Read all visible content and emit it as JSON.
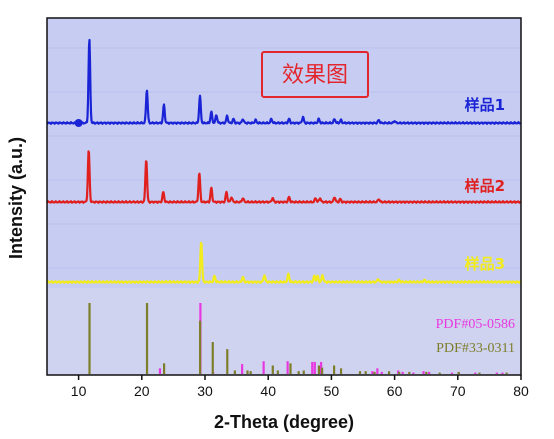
{
  "chart_data": {
    "type": "line",
    "xlabel": "2-Theta (degree)",
    "ylabel": "Intensity (a.u.)",
    "xlim": [
      5,
      80
    ],
    "x_ticks": [
      10,
      20,
      30,
      40,
      50,
      60,
      70,
      80
    ],
    "badge": "效果图",
    "colors": {
      "plot_background": "#c7cdf2",
      "sample1": "#1a24d6",
      "sample2": "#e01f1f",
      "sample3": "#f2ec1c",
      "pdf1": "#e838e0",
      "pdf2": "#7d7d2a",
      "badge_border": "#e3262d"
    },
    "series": [
      {
        "name": "样品1",
        "peaks": [
          [
            11.7,
            84
          ],
          [
            20.8,
            33
          ],
          [
            23.5,
            18
          ],
          [
            29.2,
            27
          ],
          [
            31.0,
            11
          ],
          [
            31.8,
            8
          ],
          [
            33.5,
            7
          ],
          [
            34.5,
            4
          ],
          [
            36.0,
            4
          ],
          [
            38.0,
            3
          ],
          [
            40.5,
            4
          ],
          [
            43.3,
            4
          ],
          [
            45.5,
            6
          ],
          [
            48.0,
            4
          ],
          [
            50.5,
            4
          ],
          [
            51.5,
            3
          ],
          [
            57.5,
            3
          ],
          [
            60.0,
            2
          ]
        ]
      },
      {
        "name": "样品2",
        "peaks": [
          [
            11.6,
            52
          ],
          [
            20.7,
            43
          ],
          [
            23.4,
            10
          ],
          [
            29.1,
            29
          ],
          [
            31.0,
            14
          ],
          [
            33.4,
            10
          ],
          [
            34.2,
            5
          ],
          [
            36.0,
            4
          ],
          [
            40.7,
            4
          ],
          [
            43.3,
            5
          ],
          [
            47.5,
            4
          ],
          [
            48.2,
            4
          ],
          [
            50.5,
            5
          ],
          [
            51.4,
            3
          ],
          [
            57.5,
            3
          ]
        ]
      },
      {
        "name": "样品3",
        "peaks": [
          [
            29.4,
            41
          ],
          [
            31.5,
            6
          ],
          [
            36.0,
            5
          ],
          [
            39.4,
            7
          ],
          [
            43.2,
            8
          ],
          [
            47.3,
            6
          ],
          [
            47.8,
            6
          ],
          [
            48.6,
            7
          ],
          [
            57.4,
            3
          ],
          [
            60.7,
            2
          ],
          [
            64.7,
            2
          ]
        ]
      }
    ],
    "reference_patterns": [
      {
        "name": "PDF#05-0586",
        "sticks": [
          [
            23.0,
            8
          ],
          [
            29.4,
            100
          ],
          [
            31.4,
            3
          ],
          [
            36.0,
            14
          ],
          [
            39.4,
            18
          ],
          [
            43.2,
            18
          ],
          [
            47.1,
            17
          ],
          [
            47.5,
            17
          ],
          [
            48.5,
            17
          ],
          [
            56.6,
            4
          ],
          [
            57.4,
            8
          ],
          [
            58.1,
            3
          ],
          [
            60.7,
            5
          ],
          [
            61.4,
            3
          ],
          [
            63.1,
            2
          ],
          [
            64.7,
            4
          ],
          [
            65.6,
            3
          ],
          [
            69.2,
            2
          ],
          [
            70.3,
            2
          ],
          [
            72.9,
            2
          ],
          [
            76.3,
            2
          ],
          [
            77.2,
            2
          ]
        ]
      },
      {
        "name": "PDF#33-0311",
        "sticks": [
          [
            11.6,
            100
          ],
          [
            20.7,
            100
          ],
          [
            23.4,
            15
          ],
          [
            29.1,
            75
          ],
          [
            31.1,
            45
          ],
          [
            33.4,
            35
          ],
          [
            34.6,
            5
          ],
          [
            36.6,
            5
          ],
          [
            37.1,
            4
          ],
          [
            40.6,
            12
          ],
          [
            41.4,
            5
          ],
          [
            43.4,
            15
          ],
          [
            44.7,
            4
          ],
          [
            45.5,
            5
          ],
          [
            47.9,
            12
          ],
          [
            48.4,
            9
          ],
          [
            50.3,
            12
          ],
          [
            51.4,
            8
          ],
          [
            54.4,
            4
          ],
          [
            55.3,
            4
          ],
          [
            56.7,
            3
          ],
          [
            59.0,
            4
          ],
          [
            60.6,
            3
          ],
          [
            62.2,
            3
          ],
          [
            64.9,
            3
          ],
          [
            67.0,
            2
          ],
          [
            70.0,
            3
          ],
          [
            73.3,
            2
          ],
          [
            77.6,
            2
          ]
        ]
      }
    ]
  }
}
